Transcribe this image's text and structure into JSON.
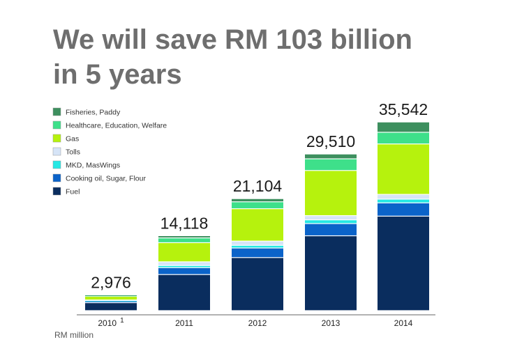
{
  "chart_data": {
    "type": "bar",
    "stacked": true,
    "title_lines": [
      "We will save RM 103 billion",
      "in 5 years"
    ],
    "unit_label": "RM million",
    "categories": [
      "2010",
      "2011",
      "2012",
      "2013",
      "2014"
    ],
    "category_footnotes": [
      "1",
      "",
      "",
      "",
      ""
    ],
    "totals": [
      "2,976",
      "14,118",
      "21,104",
      "29,510",
      "35,542"
    ],
    "ylim": [
      0,
      37000
    ],
    "grid": false,
    "legend_position": "top-left",
    "series": [
      {
        "name": "Fuel",
        "color": "#0a2d5e",
        "values": [
          1500,
          6800,
          10000,
          14100,
          17800
        ]
      },
      {
        "name": "Cooking oil, Sugar, Flour",
        "color": "#0b63c9",
        "values": [
          300,
          1300,
          1800,
          2300,
          2500
        ]
      },
      {
        "name": "MKD, MasWings",
        "color": "#25e8e4",
        "values": [
          100,
          400,
          500,
          700,
          700
        ]
      },
      {
        "name": "Tolls",
        "color": "#d6e4f7",
        "values": [
          100,
          700,
          800,
          800,
          900
        ]
      },
      {
        "name": "Gas",
        "color": "#b6f20d",
        "values": [
          700,
          3600,
          6100,
          8500,
          9500
        ]
      },
      {
        "name": "Healthcare, Education, Welfare",
        "color": "#3ee08a",
        "values": [
          200,
          900,
          1300,
          2200,
          2200
        ]
      },
      {
        "name": "Fisheries, Paddy",
        "color": "#3d8f5e",
        "values": [
          76,
          418,
          604,
          910,
          1942
        ]
      }
    ]
  }
}
